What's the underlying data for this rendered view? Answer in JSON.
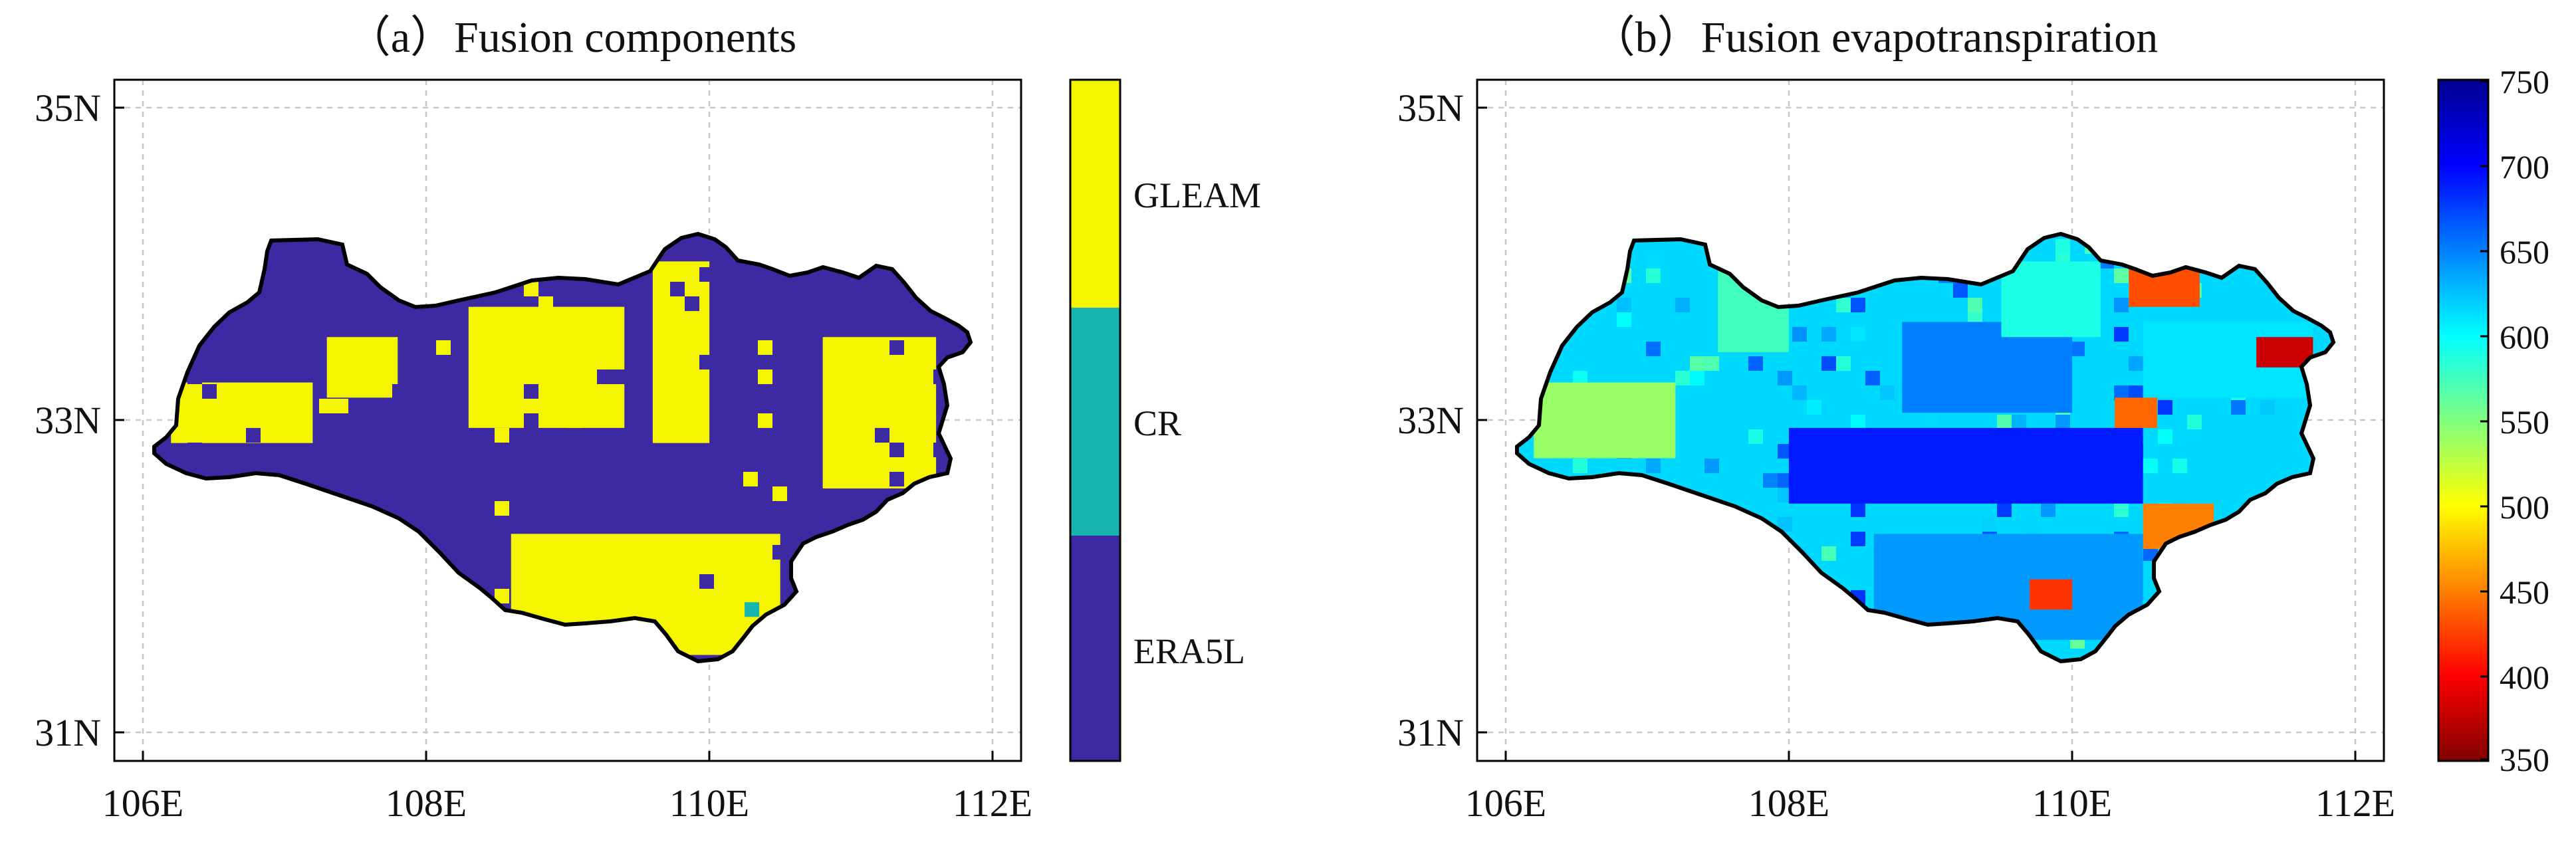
{
  "panels": [
    {
      "title": "（a）Fusion components",
      "x_ticks": [
        "106E",
        "108E",
        "110E",
        "112E"
      ],
      "y_ticks": [
        "31N",
        "33N",
        "35N"
      ],
      "colorbar": {
        "type": "categorical",
        "categories": [
          {
            "label": "GLEAM",
            "color": "#f5f500"
          },
          {
            "label": "CR",
            "color": "#17b5b0"
          },
          {
            "label": "ERA5L",
            "color": "#3d2aa3"
          }
        ]
      }
    },
    {
      "title": "（b）Fusion evapotranspiration",
      "x_ticks": [
        "106E",
        "108E",
        "110E",
        "112E"
      ],
      "y_ticks": [
        "31N",
        "33N",
        "35N"
      ],
      "colorbar": {
        "type": "continuous",
        "colormap": "jet",
        "ticks": [
          "750",
          "700",
          "650",
          "600",
          "550",
          "500",
          "450",
          "400",
          "350"
        ],
        "range": [
          350,
          750
        ]
      }
    }
  ],
  "chart_data": [
    {
      "type": "heatmap",
      "title": "（a）Fusion components",
      "xlabel": "",
      "ylabel": "",
      "xlim": [
        105.8,
        112.2
      ],
      "ylim": [
        30.8,
        35.3
      ],
      "grid": true,
      "classes": [
        "GLEAM",
        "CR",
        "ERA5L"
      ],
      "class_colors": {
        "GLEAM": "#f5f500",
        "CR": "#17b5b0",
        "ERA5L": "#3d2aa3"
      },
      "dominant_class": "ERA5L",
      "gleam_regions": [
        {
          "lon": [
            106.2,
            107.2
          ],
          "lat": [
            32.9,
            33.3
          ]
        },
        {
          "lon": [
            107.3,
            107.8
          ],
          "lat": [
            33.2,
            33.6
          ]
        },
        {
          "lon": [
            108.3,
            109.4
          ],
          "lat": [
            33.0,
            33.8
          ]
        },
        {
          "lon": [
            109.6,
            110.0
          ],
          "lat": [
            32.9,
            34.1
          ]
        },
        {
          "lon": [
            110.8,
            111.6
          ],
          "lat": [
            32.6,
            33.6
          ]
        },
        {
          "lon": [
            108.6,
            110.5
          ],
          "lat": [
            31.7,
            32.3
          ]
        },
        {
          "lon": [
            109.6,
            110.4
          ],
          "lat": [
            31.5,
            31.9
          ]
        }
      ],
      "cr_cells": [
        {
          "lon": 110.3,
          "lat": 31.8
        }
      ]
    },
    {
      "type": "heatmap",
      "title": "（b）Fusion evapotranspiration",
      "xlabel": "",
      "ylabel": "",
      "xlim": [
        105.8,
        112.2
      ],
      "ylim": [
        30.8,
        35.3
      ],
      "grid": true,
      "colorbar_range": [
        350,
        750
      ],
      "colorbar_ticks": [
        350,
        400,
        450,
        500,
        550,
        600,
        650,
        700,
        750
      ],
      "regions": [
        {
          "lon": [
            106.2,
            107.2
          ],
          "lat": [
            32.8,
            33.3
          ],
          "value": 540
        },
        {
          "lon": [
            107.5,
            108.0
          ],
          "lat": [
            33.5,
            34.2
          ],
          "value": 575
        },
        {
          "lon": [
            108.0,
            110.5
          ],
          "lat": [
            32.5,
            33.0
          ],
          "value": 690
        },
        {
          "lon": [
            108.8,
            110.0
          ],
          "lat": [
            33.1,
            33.7
          ],
          "value": 650
        },
        {
          "lon": [
            109.5,
            110.2
          ],
          "lat": [
            33.6,
            34.1
          ],
          "value": 590
        },
        {
          "lon": [
            110.5,
            111.7
          ],
          "lat": [
            33.2,
            33.7
          ],
          "value": 610
        },
        {
          "lon": [
            111.3,
            111.7
          ],
          "lat": [
            33.4,
            33.6
          ],
          "value": 380
        },
        {
          "lon": [
            110.4,
            110.9
          ],
          "lat": [
            33.8,
            34.1
          ],
          "value": 430
        },
        {
          "lon": [
            110.3,
            110.6
          ],
          "lat": [
            33.0,
            33.2
          ],
          "value": 440
        },
        {
          "lon": [
            110.5,
            111.0
          ],
          "lat": [
            32.2,
            32.5
          ],
          "value": 450
        },
        {
          "lon": [
            108.6,
            110.5
          ],
          "lat": [
            31.6,
            32.3
          ],
          "value": 640
        },
        {
          "lon": [
            109.7,
            110.0
          ],
          "lat": [
            31.8,
            32.0
          ],
          "value": 420
        }
      ]
    }
  ]
}
